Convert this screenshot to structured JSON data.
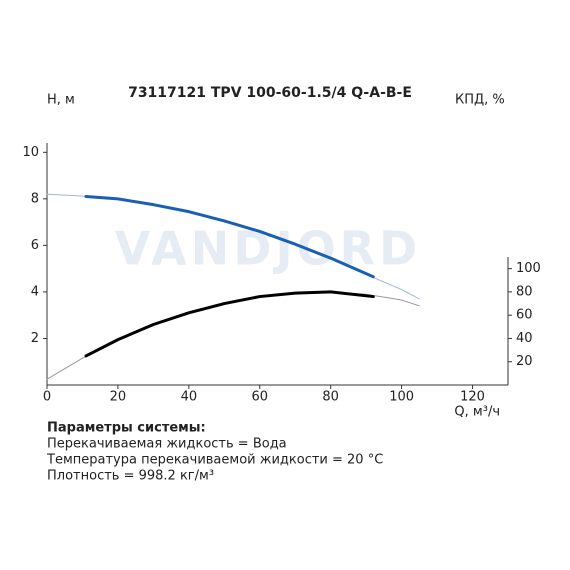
{
  "chart_data": {
    "type": "line",
    "title": "73117121 TPV 100-60-1.5/4 Q-A-B-E",
    "ylabel": "H, м",
    "y2label": "КПД, %",
    "xlabel": "Q, м³/ч",
    "watermark": "VANDJORD",
    "xlim": [
      0,
      130
    ],
    "xticks": [
      0,
      20,
      40,
      60,
      80,
      100,
      120
    ],
    "ylim": [
      0,
      10.4
    ],
    "yticks": [
      2,
      4,
      6,
      8,
      10
    ],
    "y2lim": [
      0,
      110
    ],
    "y2ticks": [
      20,
      40,
      60,
      80,
      100
    ],
    "series": [
      {
        "color": "#9db8dc",
        "width": 1,
        "x": [
          0,
          10,
          20,
          30,
          40,
          50,
          60,
          70,
          80,
          90,
          100,
          105
        ],
        "values": [
          8.2,
          8.12,
          8.0,
          7.75,
          7.45,
          7.05,
          6.6,
          6.05,
          5.45,
          4.75,
          4.1,
          3.7
        ]
      },
      {
        "color": "#1a5fb4",
        "width": 3,
        "x": [
          11,
          20,
          30,
          40,
          50,
          60,
          70,
          80,
          92
        ],
        "values": [
          8.1,
          8.0,
          7.75,
          7.45,
          7.05,
          6.6,
          6.05,
          5.45,
          4.65
        ]
      },
      {
        "color": "#999999",
        "width": 1,
        "axis": "y2",
        "x": [
          0,
          10,
          20,
          30,
          40,
          50,
          60,
          70,
          80,
          90,
          100,
          105
        ],
        "values": [
          5,
          23,
          39,
          52,
          62,
          70,
          76,
          79,
          80,
          78,
          73,
          68
        ]
      },
      {
        "color": "#000000",
        "width": 3,
        "axis": "y2",
        "x": [
          11,
          20,
          30,
          40,
          50,
          60,
          70,
          80,
          92
        ],
        "values": [
          25,
          39,
          52,
          62,
          70,
          76,
          79,
          80,
          76
        ]
      }
    ]
  },
  "parameters": {
    "heading": "Параметры системы:",
    "lines": [
      "Перекачиваемая жидкость = Вода",
      "Температура перекачиваемой жидкости = 20 °C",
      "Плотность = 998.2 кг/м³"
    ]
  }
}
